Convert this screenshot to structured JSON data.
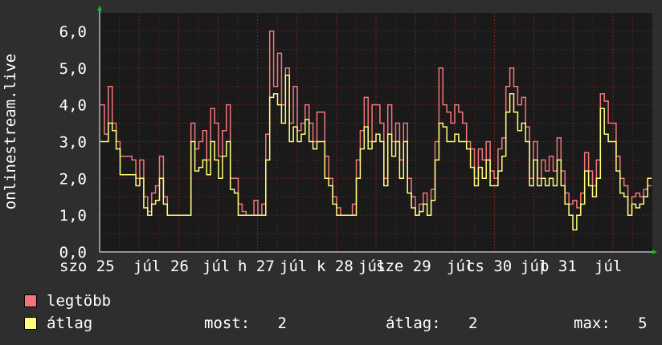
{
  "chart_data": {
    "type": "line",
    "ylabel": "onlinestream.live",
    "ylim": [
      0,
      6.5
    ],
    "y_ticks": [
      "0,0",
      "1,0",
      "2,0",
      "3,0",
      "4,0",
      "5,0",
      "6,0"
    ],
    "x_ticks": [
      "szo 25",
      "júl",
      "26",
      "júl",
      "h 27",
      "júl",
      "k 28",
      "júl",
      "sze 29",
      "júl",
      "cs 30",
      "júl",
      "p 31",
      "júl"
    ],
    "grid": true,
    "colors": {
      "legtobb": "#f4767c",
      "atlag": "#fffe7a",
      "plot_bg": "#1a1a1a",
      "grid": "#7a2020",
      "axis_arrow": "#00cc00"
    },
    "series": [
      {
        "name": "legtöbb",
        "values": [
          4,
          3.2,
          4.5,
          3.5,
          3,
          2.6,
          2.6,
          2.6,
          2.5,
          2,
          2.5,
          1.5,
          1.1,
          1.6,
          1.8,
          2.6,
          1.5,
          1,
          1,
          1,
          1,
          1,
          1,
          3.5,
          2.8,
          3,
          3.3,
          2.5,
          3.9,
          3.5,
          2.6,
          3.3,
          4,
          2,
          2,
          1.3,
          1.1,
          1,
          1,
          1.4,
          1,
          1.3,
          3.2,
          6,
          4.5,
          5.4,
          4,
          5,
          3.5,
          4.5,
          3.3,
          3.5,
          4,
          3.5,
          3,
          3.8,
          3.8,
          2.6,
          2,
          1.5,
          1.2,
          1,
          1,
          1,
          1.3,
          2.5,
          3.3,
          4.2,
          3,
          4,
          4,
          3.5,
          2,
          4,
          3,
          3.5,
          2.5,
          3.5,
          2,
          1.5,
          1,
          1.3,
          1.6,
          1,
          1.7,
          3,
          5,
          4,
          3.8,
          3.5,
          4,
          3.8,
          3.5,
          3,
          2.8,
          2,
          2.8,
          2.5,
          3,
          2.2,
          2,
          2.8,
          3.1,
          4.5,
          5,
          4.5,
          4,
          4.2,
          3.4,
          2,
          3,
          2,
          2.5,
          2.2,
          2.6,
          2.2,
          3.1,
          2.2,
          1.6,
          1.3,
          1.4,
          1.2,
          1.6,
          2.7,
          2.2,
          1.8,
          2.5,
          4.3,
          4.1,
          3.5,
          3.5,
          2.6,
          2,
          1.8,
          1,
          1.5,
          1.6,
          1.5,
          1.7,
          1.8
        ],
        "note_values": "read approx at even time steps across 7 days"
      },
      {
        "name": "átlag",
        "values": [
          3,
          3,
          3.5,
          3.3,
          2.8,
          2.1,
          2.1,
          2.1,
          2.1,
          1.8,
          2,
          1.2,
          1,
          1.3,
          1.4,
          2,
          1.3,
          1,
          1,
          1,
          1,
          1,
          1,
          3,
          2.2,
          2.3,
          2.5,
          2.1,
          3,
          2.5,
          2,
          2.6,
          3,
          1.7,
          1.6,
          1,
          1,
          1,
          1,
          1,
          1,
          1,
          2.5,
          4.2,
          4.3,
          4,
          3.5,
          4.8,
          3,
          3.4,
          3,
          3.2,
          3.6,
          3,
          2.8,
          3,
          3,
          2,
          1.8,
          1.3,
          1,
          1,
          1,
          1,
          1,
          2,
          2.8,
          3.4,
          2.8,
          3,
          3.2,
          3,
          1.8,
          3.2,
          2.6,
          3,
          2,
          3,
          1.6,
          1.2,
          1,
          1.1,
          1.3,
          1,
          1.4,
          2.5,
          3.5,
          3.4,
          3,
          3,
          3.2,
          3,
          3,
          2.8,
          2.3,
          1.8,
          2.3,
          2,
          2.5,
          1.8,
          1.8,
          2.2,
          2.6,
          3.8,
          4.3,
          3.8,
          3.3,
          3.5,
          3,
          1.8,
          2.5,
          1.8,
          2,
          1.8,
          2,
          1.8,
          2.5,
          1.8,
          1.3,
          1,
          0.6,
          1,
          1.3,
          2.2,
          1.8,
          1.5,
          2,
          3.9,
          3.2,
          3,
          3,
          2.2,
          1.6,
          1.5,
          1,
          1.3,
          1.2,
          1.3,
          1.5,
          2
        ]
      }
    ]
  },
  "legend": {
    "max_label": "legtöbb",
    "avg_label": "átlag",
    "current": "most:   2",
    "average": "átlag:   2",
    "maximum": "max:   5"
  }
}
